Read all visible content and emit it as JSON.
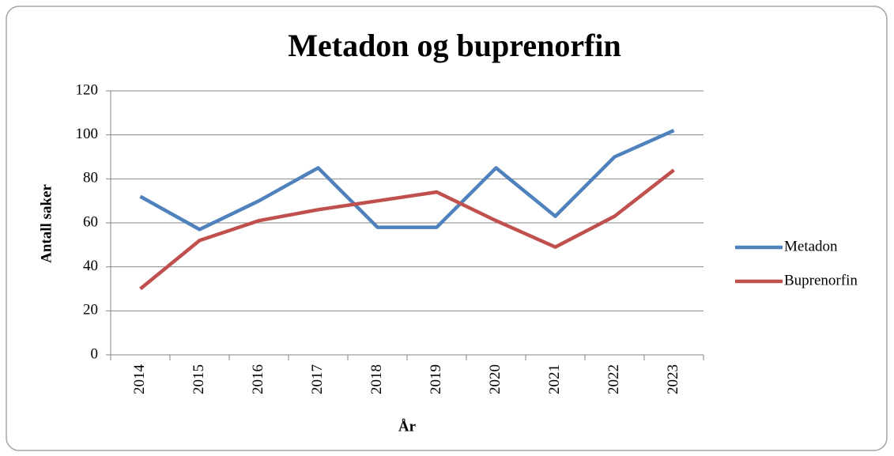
{
  "chart_data": {
    "type": "line",
    "title": "Metadon og buprenorfin",
    "x_label": "År",
    "y_label": "Antall saker",
    "categories": [
      "2014",
      "2015",
      "2016",
      "2017",
      "2018",
      "2019",
      "2020",
      "2021",
      "2022",
      "2023"
    ],
    "series": [
      {
        "name": "Metadon",
        "color": "#4f81bd",
        "values": [
          72,
          57,
          70,
          85,
          58,
          58,
          85,
          63,
          90,
          102
        ]
      },
      {
        "name": "Buprenorfin",
        "color": "#c0504d",
        "values": [
          30,
          52,
          61,
          66,
          70,
          74,
          61,
          49,
          63,
          84
        ]
      }
    ],
    "ylim": [
      0,
      120
    ],
    "yticks": [
      0,
      20,
      40,
      60,
      80,
      100,
      120
    ],
    "grid": true,
    "legend": "right"
  }
}
